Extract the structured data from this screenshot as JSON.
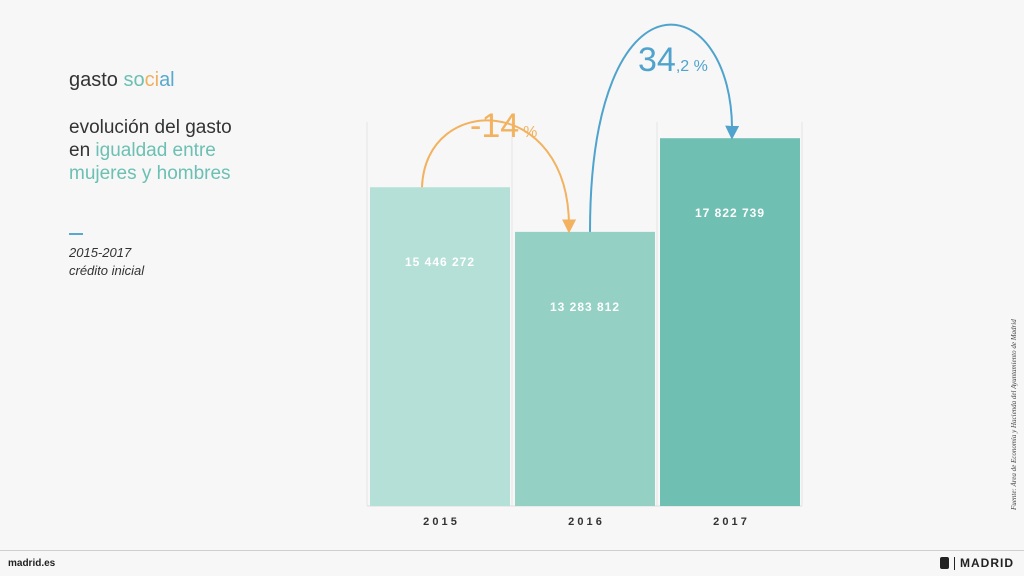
{
  "header": {
    "title_part1": "gasto ",
    "title_so": "so",
    "title_ci": "ci",
    "title_al": "al",
    "subtitle_line1": "evolución del gasto",
    "subtitle_line2_prefix": "en ",
    "subtitle_line2_accent": "igualdad entre",
    "subtitle_line3": "mujeres y hombres",
    "period": "2015-2017",
    "note": "crédito inicial"
  },
  "source": "Fuente: Área de Economía y Hacienda del Ayuntamiento de Madrid",
  "footer": {
    "site": "madrid.es",
    "brand": "MADRID"
  },
  "colors": {
    "bar1": "#b5e0d7",
    "bar2": "#94d0c4",
    "bar3": "#6fbfb2",
    "arrow_down": "#f2b25f",
    "arrow_up": "#4fa3cc"
  },
  "chart_data": {
    "type": "bar",
    "categories": [
      "2015",
      "2016",
      "2017"
    ],
    "values": [
      15446272,
      13283812,
      17822739
    ],
    "value_labels": [
      "15 446 272",
      "13 283 812",
      "17 822 739"
    ],
    "category_labels": [
      "2 0 1 5",
      "2 0 1 6",
      "2 0 1 7"
    ],
    "ylim": [
      0,
      22000000
    ],
    "grid": true,
    "annotations": [
      {
        "from": "2015",
        "to": "2016",
        "label_main": "-14",
        "label_small": "%",
        "direction": "down"
      },
      {
        "from": "2016",
        "to": "2017",
        "label_main": "34",
        "label_small": ",2 %",
        "direction": "up"
      }
    ]
  }
}
